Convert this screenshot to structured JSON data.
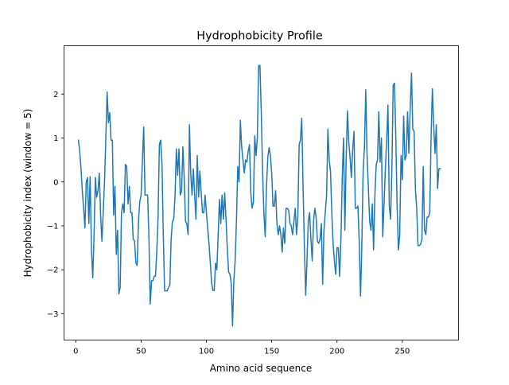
{
  "chart_data": {
    "type": "line",
    "title": "Hydrophobicity Profile",
    "xlabel": "Amino acid sequence",
    "ylabel": "Hydrophobicity index (window = 5)",
    "xlim": [
      -9,
      293
    ],
    "ylim": [
      -3.6,
      3.1
    ],
    "xticks": [
      0,
      50,
      100,
      150,
      200,
      250
    ],
    "yticks": [
      -3,
      -2,
      -1,
      0,
      1,
      2
    ],
    "ytick_labels": [
      "−3",
      "−2",
      "−1",
      "0",
      "1",
      "2"
    ],
    "grid": false,
    "legend": "none",
    "series": [
      {
        "color": "#1f77b4",
        "points": [
          [
            2,
            0.95
          ],
          [
            3,
            0.7
          ],
          [
            4,
            0.3
          ],
          [
            5,
            -0.2
          ],
          [
            6,
            -0.6
          ],
          [
            7,
            -1.05
          ],
          [
            8,
            0.0
          ],
          [
            9,
            0.1
          ],
          [
            10,
            -0.95
          ],
          [
            11,
            0.12
          ],
          [
            12,
            -1.55
          ],
          [
            13,
            -2.18
          ],
          [
            14,
            -1.2
          ],
          [
            15,
            0.1
          ],
          [
            16,
            -0.35
          ],
          [
            17,
            -0.2
          ],
          [
            18,
            0.2
          ],
          [
            19,
            -0.75
          ],
          [
            20,
            -1.35
          ],
          [
            21,
            -0.7
          ],
          [
            22,
            0.0
          ],
          [
            23,
            1.0
          ],
          [
            24,
            2.05
          ],
          [
            25,
            1.35
          ],
          [
            26,
            1.58
          ],
          [
            27,
            0.95
          ],
          [
            28,
            0.95
          ],
          [
            29,
            -0.75
          ],
          [
            30,
            -0.1
          ],
          [
            31,
            -1.65
          ],
          [
            32,
            -1.1
          ],
          [
            33,
            -2.55
          ],
          [
            34,
            -2.4
          ],
          [
            35,
            -0.7
          ],
          [
            36,
            -0.5
          ],
          [
            37,
            -0.7
          ],
          [
            38,
            0.4
          ],
          [
            39,
            0.35
          ],
          [
            40,
            -0.5
          ],
          [
            41,
            -0.1
          ],
          [
            42,
            -0.7
          ],
          [
            43,
            -0.7
          ],
          [
            44,
            -1.3
          ],
          [
            45,
            -1.35
          ],
          [
            46,
            -1.85
          ],
          [
            47,
            -1.9
          ],
          [
            48,
            -0.9
          ],
          [
            49,
            -0.45
          ],
          [
            50,
            -0.3
          ],
          [
            52,
            1.25
          ],
          [
            53,
            -0.3
          ],
          [
            55,
            -0.3
          ],
          [
            56,
            -1.25
          ],
          [
            57,
            -2.78
          ],
          [
            58,
            -2.25
          ],
          [
            59,
            -2.25
          ],
          [
            60,
            -2.15
          ],
          [
            61,
            -2.15
          ],
          [
            62,
            -1.6
          ],
          [
            63,
            -0.8
          ],
          [
            64,
            0.85
          ],
          [
            65,
            0.95
          ],
          [
            66,
            0.4
          ],
          [
            67,
            -1.2
          ],
          [
            68,
            -2.48
          ],
          [
            69,
            -2.48
          ],
          [
            70,
            -2.48
          ],
          [
            71,
            -2.4
          ],
          [
            72,
            -2.35
          ],
          [
            73,
            -1.3
          ],
          [
            74,
            -0.9
          ],
          [
            75,
            -0.85
          ],
          [
            76,
            -0.3
          ],
          [
            77,
            0.75
          ],
          [
            78,
            0.15
          ],
          [
            79,
            0.75
          ],
          [
            80,
            -0.3
          ],
          [
            81,
            -0.2
          ],
          [
            82,
            0.8
          ],
          [
            83,
            0.1
          ],
          [
            84,
            -0.9
          ],
          [
            85,
            -0.95
          ],
          [
            86,
            -1.2
          ],
          [
            87,
            1.3
          ],
          [
            88,
            0.2
          ],
          [
            89,
            -0.3
          ],
          [
            90,
            0.3
          ],
          [
            91,
            -0.3
          ],
          [
            92,
            -0.85
          ],
          [
            93,
            0.6
          ],
          [
            94,
            -0.35
          ],
          [
            95,
            0.25
          ],
          [
            96,
            -0.25
          ],
          [
            97,
            -0.7
          ],
          [
            98,
            -0.7
          ],
          [
            99,
            -0.3
          ],
          [
            100,
            -0.7
          ],
          [
            101,
            -1.05
          ],
          [
            102,
            -1.4
          ],
          [
            103,
            -1.85
          ],
          [
            104,
            -2.3
          ],
          [
            105,
            -2.47
          ],
          [
            106,
            -2.47
          ],
          [
            107,
            -1.85
          ],
          [
            108,
            -2.0
          ],
          [
            109,
            -1.2
          ],
          [
            110,
            -0.4
          ],
          [
            111,
            -0.95
          ],
          [
            112,
            -0.3
          ],
          [
            113,
            -0.85
          ],
          [
            114,
            -0.25
          ],
          [
            115,
            -0.85
          ],
          [
            116,
            -1.5
          ],
          [
            117,
            -2.05
          ],
          [
            118,
            -2.1
          ],
          [
            119,
            -2.3
          ],
          [
            120,
            -3.28
          ],
          [
            121,
            -2.25
          ],
          [
            122,
            -1.8
          ],
          [
            123,
            -0.9
          ],
          [
            124,
            0.35
          ],
          [
            125,
            0.0
          ],
          [
            126,
            1.4
          ],
          [
            127,
            0.8
          ],
          [
            128,
            0.5
          ],
          [
            129,
            0.2
          ],
          [
            130,
            0.5
          ],
          [
            131,
            0.45
          ],
          [
            132,
            0.7
          ],
          [
            133,
            0.85
          ],
          [
            134,
            -0.25
          ],
          [
            135,
            -0.6
          ],
          [
            136,
            -0.45
          ],
          [
            137,
            1.05
          ],
          [
            138,
            0.6
          ],
          [
            139,
            1.0
          ],
          [
            140,
            2.65
          ],
          [
            141,
            2.65
          ],
          [
            142,
            1.6
          ],
          [
            143,
            0.25
          ],
          [
            144,
            -0.7
          ],
          [
            145,
            -1.25
          ],
          [
            146,
            -0.1
          ],
          [
            147,
            0.55
          ],
          [
            148,
            0.78
          ],
          [
            149,
            0.6
          ],
          [
            150,
            0.2
          ],
          [
            151,
            -0.55
          ],
          [
            152,
            -0.55
          ],
          [
            153,
            -0.2
          ],
          [
            154,
            -0.95
          ],
          [
            155,
            -1.2
          ],
          [
            156,
            -1.0
          ],
          [
            157,
            -1.2
          ],
          [
            158,
            -1.6
          ],
          [
            159,
            -1.05
          ],
          [
            160,
            -1.4
          ],
          [
            161,
            -0.6
          ],
          [
            162,
            -0.6
          ],
          [
            163,
            -0.65
          ],
          [
            164,
            -0.95
          ],
          [
            165,
            -1.0
          ],
          [
            166,
            -1.2
          ],
          [
            167,
            -0.9
          ],
          [
            168,
            -0.6
          ],
          [
            169,
            -1.2
          ],
          [
            170,
            -0.8
          ],
          [
            171,
            0.85
          ],
          [
            172,
            0.95
          ],
          [
            173,
            1.45
          ],
          [
            174,
            -0.1
          ],
          [
            175,
            -1.45
          ],
          [
            176,
            -2.58
          ],
          [
            177,
            -1.8
          ],
          [
            178,
            -0.9
          ],
          [
            179,
            -0.7
          ],
          [
            180,
            -1.3
          ],
          [
            181,
            -1.8
          ],
          [
            182,
            -0.9
          ],
          [
            183,
            -0.6
          ],
          [
            184,
            -0.8
          ],
          [
            185,
            -1.35
          ],
          [
            186,
            -1.4
          ],
          [
            187,
            -1.3
          ],
          [
            188,
            -0.95
          ],
          [
            189,
            -2.33
          ],
          [
            190,
            -1.1
          ],
          [
            191,
            -0.7
          ],
          [
            192,
            -0.3
          ],
          [
            193,
            1.2
          ],
          [
            194,
            0.5
          ],
          [
            195,
            0.25
          ],
          [
            196,
            -0.7
          ],
          [
            197,
            -1.4
          ],
          [
            198,
            -1.8
          ],
          [
            199,
            -2.1
          ],
          [
            200,
            -1.5
          ],
          [
            201,
            -1.5
          ],
          [
            202,
            -2.15
          ],
          [
            203,
            -1.3
          ],
          [
            204,
            0.1
          ],
          [
            205,
            1.0
          ],
          [
            206,
            -1.1
          ],
          [
            207,
            0.5
          ],
          [
            208,
            1.62
          ],
          [
            209,
            0.9
          ],
          [
            210,
            0.55
          ],
          [
            211,
            0.1
          ],
          [
            212,
            0.75
          ],
          [
            213,
            1.15
          ],
          [
            214,
            -0.6
          ],
          [
            215,
            -0.6
          ],
          [
            216,
            -0.55
          ],
          [
            217,
            -1.35
          ],
          [
            218,
            -2.6
          ],
          [
            219,
            -1.45
          ],
          [
            220,
            0.25
          ],
          [
            221,
            0.8
          ],
          [
            222,
            2.1
          ],
          [
            223,
            0.6
          ],
          [
            224,
            -0.15
          ],
          [
            225,
            -0.9
          ],
          [
            226,
            -1.1
          ],
          [
            227,
            -0.5
          ],
          [
            228,
            -1.55
          ],
          [
            229,
            -0.3
          ],
          [
            230,
            0.4
          ],
          [
            231,
            0.5
          ],
          [
            232,
            1.6
          ],
          [
            233,
            0.45
          ],
          [
            234,
            1.0
          ],
          [
            235,
            -1.25
          ],
          [
            236,
            -0.5
          ],
          [
            237,
            0.3
          ],
          [
            238,
            0.95
          ],
          [
            239,
            1.75
          ],
          [
            240,
            -0.55
          ],
          [
            241,
            -0.85
          ],
          [
            242,
            0.3
          ],
          [
            243,
            2.2
          ],
          [
            244,
            2.25
          ],
          [
            245,
            1.0
          ],
          [
            246,
            -0.55
          ],
          [
            247,
            -1.55
          ],
          [
            248,
            -1.2
          ],
          [
            249,
            0.6
          ],
          [
            250,
            0.05
          ],
          [
            251,
            1.5
          ],
          [
            252,
            0.5
          ],
          [
            253,
            0.6
          ],
          [
            254,
            1.6
          ],
          [
            255,
            0.65
          ],
          [
            256,
            1.65
          ],
          [
            257,
            2.48
          ],
          [
            258,
            1.2
          ],
          [
            259,
            1.15
          ],
          [
            260,
            -0.15
          ],
          [
            261,
            -0.6
          ],
          [
            262,
            -1.45
          ],
          [
            263,
            -1.45
          ],
          [
            264,
            -1.42
          ],
          [
            265,
            -1.3
          ],
          [
            266,
            0.35
          ],
          [
            267,
            -1.1
          ],
          [
            268,
            -1.2
          ],
          [
            269,
            -0.8
          ],
          [
            270,
            -0.8
          ],
          [
            271,
            -0.7
          ],
          [
            272,
            1.0
          ],
          [
            273,
            2.12
          ],
          [
            274,
            1.3
          ],
          [
            275,
            0.65
          ],
          [
            276,
            1.3
          ],
          [
            277,
            -0.15
          ],
          [
            278,
            0.3
          ],
          [
            279,
            0.3
          ]
        ]
      }
    ]
  }
}
